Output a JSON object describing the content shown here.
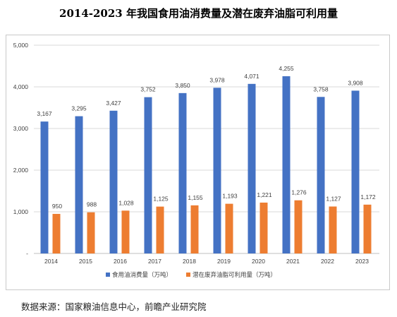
{
  "title": "2014-2023 年我国食用油消费量及潜在废弃油脂可利用量",
  "source": "数据来源：国家粮油信息中心，前瞻产业研究院",
  "colors": {
    "series1": "#4472C4",
    "series2": "#ED7D31",
    "grid": "#d9d9d9",
    "axis": "#bfbfbf",
    "text": "#404040"
  },
  "chart_data": {
    "type": "bar",
    "title": "2014-2023 年我国食用油消费量及潜在废弃油脂可利用量",
    "categories": [
      "2014",
      "2015",
      "2016",
      "2017",
      "2018",
      "2019",
      "2020",
      "2021",
      "2022",
      "2023"
    ],
    "series": [
      {
        "name": "食用油消费量（万吨）",
        "values": [
          3167,
          3295,
          3427,
          3752,
          3850,
          3978,
          4071,
          4255,
          3758,
          3908
        ],
        "labels": [
          "3,167",
          "3,295",
          "3,427",
          "3,752",
          "3,850",
          "3,978",
          "4,071",
          "4,255",
          "3,758",
          "3,908"
        ]
      },
      {
        "name": "潜在废弃油脂可利用量（万吨）",
        "values": [
          950,
          988,
          1028,
          1125,
          1155,
          1193,
          1221,
          1276,
          1127,
          1172
        ],
        "labels": [
          "950",
          "988",
          "1,028",
          "1,125",
          "1,155",
          "1,193",
          "1,221",
          "1,276",
          "1,127",
          "1,172"
        ]
      }
    ],
    "yticks": [
      0,
      1000,
      2000,
      3000,
      4000,
      5000
    ],
    "ytick_labels": [
      "-",
      "1,000",
      "2,000",
      "3,000",
      "4,000",
      "5,000"
    ],
    "ylim": [
      0,
      5000
    ],
    "grid": true,
    "legend": "bottom"
  }
}
